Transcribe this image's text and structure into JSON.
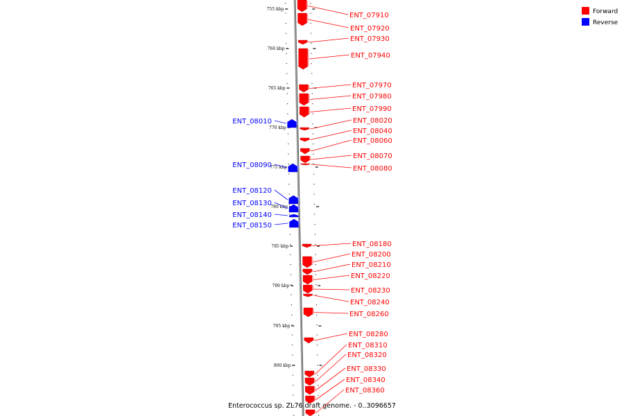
{
  "caption": "Enterococcus sp. ZL76 draft genome. - 0..3096657",
  "legend": [
    {
      "label": "Forward",
      "color": "#ff0000"
    },
    {
      "label": "Reverse",
      "color": "#0000ff"
    }
  ],
  "colors": {
    "forward": "#ff0000",
    "reverse": "#0000ff",
    "backbone": "#888888"
  },
  "ruler": {
    "ticks": [
      "755 kbp",
      "760 kbp",
      "765 kbp",
      "770 kbp",
      "775 kbp",
      "780 kbp",
      "785 kbp",
      "790 kbp",
      "795 kbp",
      "800 kbp"
    ]
  },
  "genes": [
    {
      "name": "ENT_07910",
      "strand": "forward"
    },
    {
      "name": "ENT_07920",
      "strand": "forward"
    },
    {
      "name": "ENT_07930",
      "strand": "forward"
    },
    {
      "name": "ENT_07940",
      "strand": "forward"
    },
    {
      "name": "ENT_07970",
      "strand": "forward"
    },
    {
      "name": "ENT_07980",
      "strand": "forward"
    },
    {
      "name": "ENT_07990",
      "strand": "forward"
    },
    {
      "name": "ENT_08020",
      "strand": "forward"
    },
    {
      "name": "ENT_08040",
      "strand": "forward"
    },
    {
      "name": "ENT_08060",
      "strand": "forward"
    },
    {
      "name": "ENT_08070",
      "strand": "forward"
    },
    {
      "name": "ENT_08080",
      "strand": "forward"
    },
    {
      "name": "ENT_08180",
      "strand": "forward"
    },
    {
      "name": "ENT_08200",
      "strand": "forward"
    },
    {
      "name": "ENT_08210",
      "strand": "forward"
    },
    {
      "name": "ENT_08220",
      "strand": "forward"
    },
    {
      "name": "ENT_08230",
      "strand": "forward"
    },
    {
      "name": "ENT_08240",
      "strand": "forward"
    },
    {
      "name": "ENT_08260",
      "strand": "forward"
    },
    {
      "name": "ENT_08280",
      "strand": "forward"
    },
    {
      "name": "ENT_08310",
      "strand": "forward"
    },
    {
      "name": "ENT_08320",
      "strand": "forward"
    },
    {
      "name": "ENT_08330",
      "strand": "forward"
    },
    {
      "name": "ENT_08340",
      "strand": "forward"
    },
    {
      "name": "ENT_08360",
      "strand": "forward"
    },
    {
      "name": "ENT_08010",
      "strand": "reverse"
    },
    {
      "name": "ENT_08090",
      "strand": "reverse"
    },
    {
      "name": "ENT_08120",
      "strand": "reverse"
    },
    {
      "name": "ENT_08130",
      "strand": "reverse"
    },
    {
      "name": "ENT_08140",
      "strand": "reverse"
    },
    {
      "name": "ENT_08150",
      "strand": "reverse"
    }
  ]
}
